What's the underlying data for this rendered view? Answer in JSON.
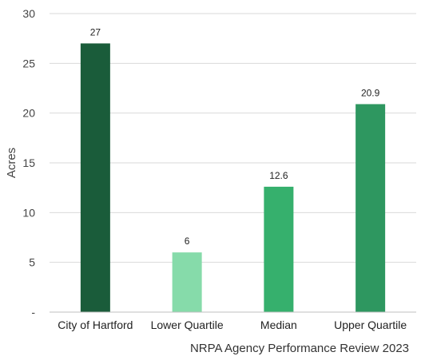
{
  "chart_data": {
    "type": "bar",
    "categories": [
      "City of Hartford",
      "Lower Quartile",
      "Median",
      "Upper Quartile"
    ],
    "values": [
      27,
      6,
      12.6,
      20.9
    ],
    "data_labels": [
      "27",
      "6",
      "12.6",
      "20.9"
    ],
    "bar_colors": [
      "#1a5c3a",
      "#86dbaa",
      "#36b06d",
      "#2e9760"
    ],
    "ylabel": "Acres",
    "ylim": [
      0,
      30
    ],
    "yticks": [
      {
        "value": 0,
        "label": "-"
      },
      {
        "value": 5,
        "label": "5"
      },
      {
        "value": 10,
        "label": "10"
      },
      {
        "value": 15,
        "label": "15"
      },
      {
        "value": 20,
        "label": "20"
      },
      {
        "value": 25,
        "label": "25"
      },
      {
        "value": 30,
        "label": "30"
      }
    ],
    "grid": true,
    "gridline_color": "#d9d9d9",
    "axis_color": "#bfbfbf",
    "source": "NRPA Agency Performance Review 2023"
  }
}
